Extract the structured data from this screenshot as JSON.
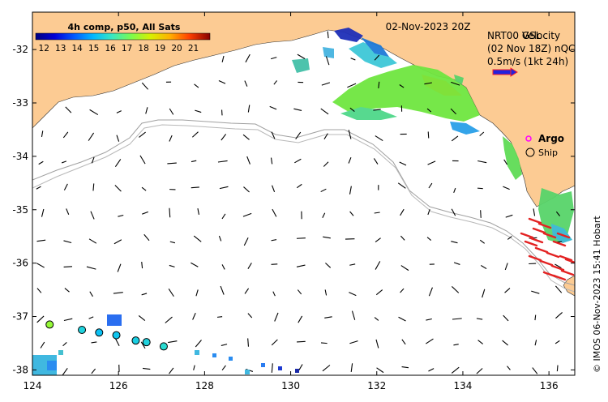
{
  "map": {
    "date_label": "02-Nov-2023 20Z",
    "colorbar_title": "4h comp, p50, All Sats",
    "colorbar_ticks": [
      "12",
      "13",
      "14",
      "15",
      "16",
      "17",
      "18",
      "19",
      "20",
      "21"
    ],
    "colorbar_range": [
      11.5,
      22
    ],
    "legend": {
      "overlay_line1": "NRT00 GSL",
      "overlay_line2": "(02 Nov 18Z) nQC",
      "velocity_title": "Velocity",
      "velocity_scale": "0.5m/s (1kt 24h)",
      "argo_label": "Argo",
      "ship_label": "Ship"
    },
    "credit": "© IMOS 06-Nov-2023 15:41 Hobart",
    "x_ticks": [
      "124",
      "126",
      "128",
      "130",
      "132",
      "134",
      "136"
    ],
    "y_ticks": [
      "-32",
      "-33",
      "-34",
      "-35",
      "-36",
      "-37",
      "-38"
    ],
    "lon_range": [
      124,
      136.6
    ],
    "lat_range": [
      -38.1,
      -31.3
    ],
    "colors": {
      "land": "#fccb93",
      "ocean": "#ffffff",
      "arrows": "#000000",
      "radar_vectors": "#e32222",
      "argo": "#ff00ff",
      "bathymetry": "#a0a0a0",
      "legend_arrow_fill": "#2222dd",
      "legend_arrow_edge": "#ff2222"
    }
  },
  "drifters": [
    {
      "lon": 124.4,
      "lat": -37.15,
      "sst": 17.6
    },
    {
      "lon": 125.15,
      "lat": -37.25,
      "sst": 15.6
    },
    {
      "lon": 125.55,
      "lat": -37.3,
      "sst": 15.2
    },
    {
      "lon": 125.95,
      "lat": -37.35,
      "sst": 15.3
    },
    {
      "lon": 126.4,
      "lat": -37.45,
      "sst": 15.5
    },
    {
      "lon": 126.65,
      "lat": -37.48,
      "sst": 15.6
    },
    {
      "lon": 127.05,
      "lat": -37.56,
      "sst": 15.8
    }
  ]
}
